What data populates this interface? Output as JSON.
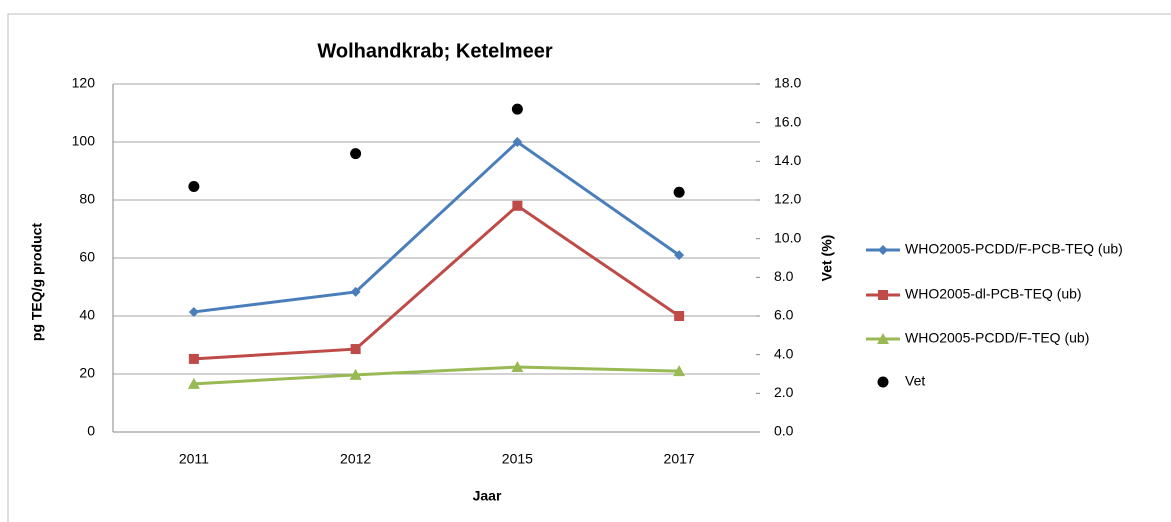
{
  "chart_data": {
    "type": "line",
    "title": "Wolhandkrab; Ketelmeer",
    "xlabel": "Jaar",
    "ylabel": "pg TEQ/g product",
    "y2label": "Vet (%)",
    "categories": [
      "2011",
      "2012",
      "2015",
      "2017"
    ],
    "series": [
      {
        "name": "WHO2005-PCDD/F-PCB-TEQ (ub)",
        "color": "#4a7ebb",
        "marker": "diamond",
        "values": [
          41.4,
          48.3,
          100,
          61
        ]
      },
      {
        "name": "WHO2005-dl-PCB-TEQ (ub)",
        "color": "#be4b48",
        "marker": "square",
        "values": [
          25.2,
          28.6,
          78,
          40
        ]
      },
      {
        "name": "WHO2005-PCDD/F-TEQ (ub)",
        "color": "#98b954",
        "marker": "triangle",
        "values": [
          16.6,
          19.7,
          22.4,
          21
        ]
      },
      {
        "name": "Vet",
        "color": "#000000",
        "marker": "circle",
        "axis": "y2",
        "line": false,
        "values": [
          12.7,
          14.4,
          16.7,
          12.4
        ]
      }
    ],
    "ylim": [
      0,
      120
    ],
    "yticks": [
      0,
      20,
      40,
      60,
      80,
      100,
      120
    ],
    "y2lim": [
      0,
      18
    ],
    "y2ticks": [
      {
        "value": 0,
        "label": "0.0"
      },
      {
        "value": 2,
        "label": "2.0"
      },
      {
        "value": 4,
        "label": "4.0"
      },
      {
        "value": 6,
        "label": "6.0"
      },
      {
        "value": 8,
        "label": "8.0"
      },
      {
        "value": 10,
        "label": "10.0"
      },
      {
        "value": 12,
        "label": "12.0"
      },
      {
        "value": 14,
        "label": "14.0"
      },
      {
        "value": 16,
        "label": "16.0"
      },
      {
        "value": 18,
        "label": "18.0"
      }
    ],
    "grid": true,
    "legend": "right"
  }
}
